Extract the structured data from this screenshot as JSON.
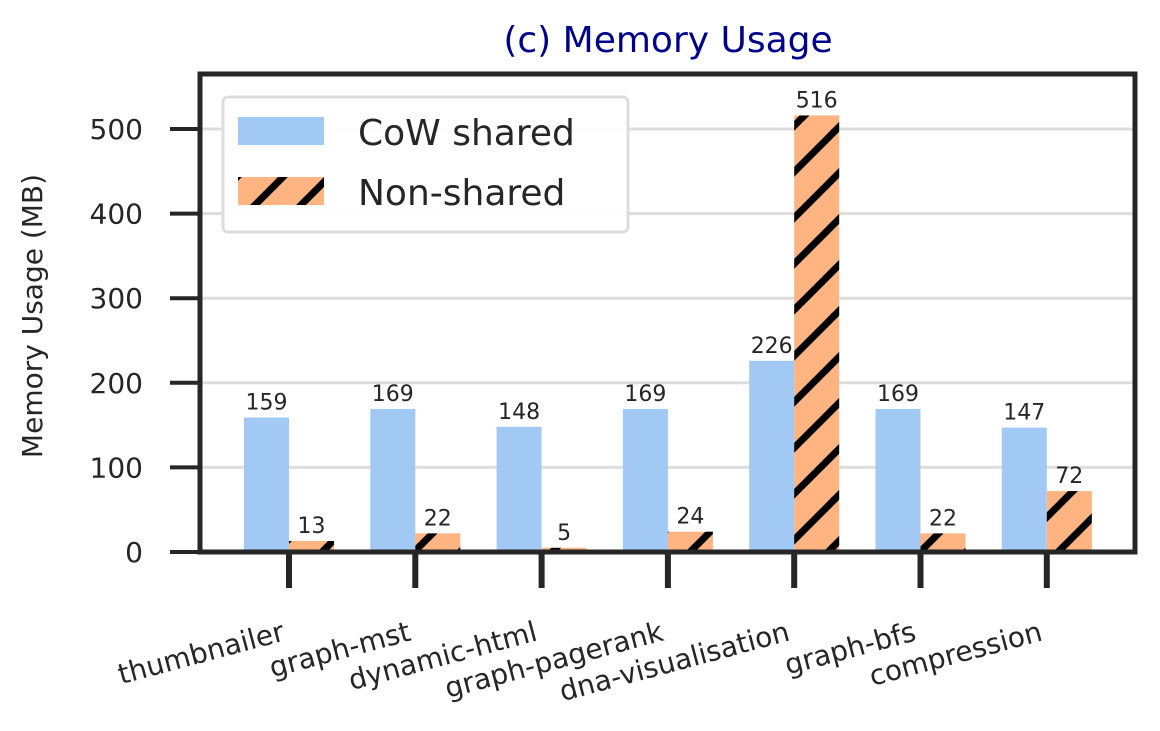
{
  "chart_data": {
    "type": "bar",
    "title": "(c) Memory Usage",
    "xlabel": "",
    "ylabel": "Memory Usage (MB)",
    "ylim": [
      0,
      565
    ],
    "yticks": [
      0,
      100,
      200,
      300,
      400,
      500
    ],
    "grid": "y",
    "legend": "top-left",
    "categories": [
      "thumbnailer",
      "graph-mst",
      "dynamic-html",
      "graph-pagerank",
      "dna-visualisation",
      "graph-bfs",
      "compression"
    ],
    "series": [
      {
        "name": "CoW shared",
        "values": [
          159,
          169,
          148,
          169,
          226,
          169,
          147
        ],
        "color": "#a1c9f4",
        "hatch": "none"
      },
      {
        "name": "Non-shared",
        "values": [
          13,
          22,
          5,
          24,
          516,
          22,
          72
        ],
        "color": "#ffb482",
        "hatch": "diagonal"
      }
    ],
    "colors": {
      "title": "#00008b",
      "text": "#262626",
      "grid": "#dddddd",
      "frame": "#262626",
      "hatch": "#000000"
    }
  }
}
